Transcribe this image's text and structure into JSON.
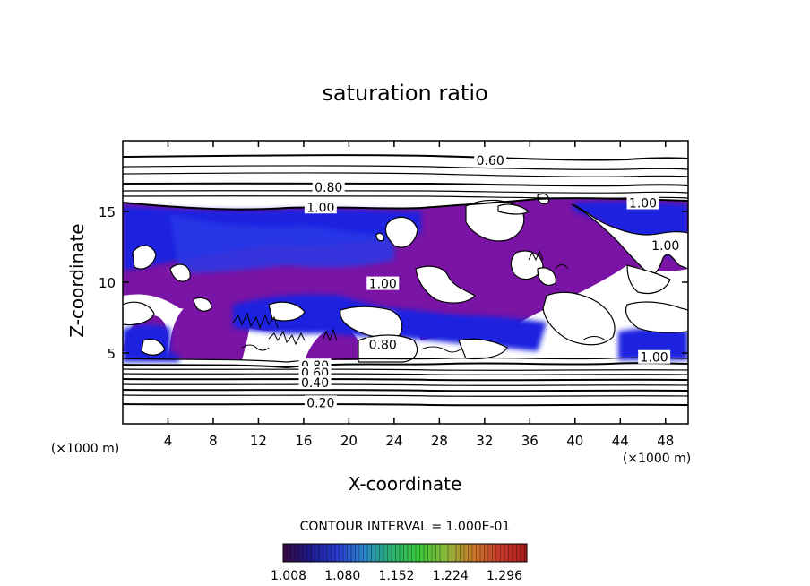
{
  "chart_data": {
    "type": "heatmap",
    "title": "saturation ratio",
    "xlabel": "X-coordinate",
    "ylabel": "Z-coordinate",
    "x_unit_label": "(×1000 m)",
    "x_unit_label_right": "(×1000 m)",
    "xlim": [
      0,
      50
    ],
    "ylim": [
      0,
      20
    ],
    "x_ticks": [
      4,
      8,
      12,
      16,
      20,
      24,
      28,
      32,
      36,
      40,
      44,
      48
    ],
    "y_ticks": [
      5,
      10,
      15
    ],
    "grid": false,
    "contour_interval_text": "CONTOUR INTERVAL = 1.000E-01",
    "contour_labels": [
      {
        "text": "0.60",
        "x": 32.5,
        "z": 18.6
      },
      {
        "text": "0.80",
        "x": 18.2,
        "z": 16.7
      },
      {
        "text": "1.00",
        "x": 17.5,
        "z": 15.3
      },
      {
        "text": "1.00",
        "x": 46.0,
        "z": 15.6
      },
      {
        "text": "1.00",
        "x": 48.0,
        "z": 12.6
      },
      {
        "text": "1.00",
        "x": 23.0,
        "z": 9.9
      },
      {
        "text": "0.80",
        "x": 23.0,
        "z": 5.6
      },
      {
        "text": "1.00",
        "x": 47.0,
        "z": 4.7
      },
      {
        "text": "0.80",
        "x": 17.0,
        "z": 4.1
      },
      {
        "text": "0.60",
        "x": 17.0,
        "z": 3.6
      },
      {
        "text": "0.40",
        "x": 17.0,
        "z": 2.9
      },
      {
        "text": "0.20",
        "x": 17.5,
        "z": 1.5
      }
    ],
    "colorbar": {
      "ticks": [
        "1.008",
        "1.080",
        "1.152",
        "1.224",
        "1.296"
      ],
      "colors": [
        "#3a0a42",
        "#1a1a8a",
        "#2a3acc",
        "#2a86c8",
        "#2ab070",
        "#3ac83a",
        "#8ab83a",
        "#c87a2a",
        "#c83a2a",
        "#a81a1a"
      ]
    },
    "fill_colors": {
      "purple": "#7a14a4",
      "blue": "#1a24e0",
      "deep_blue": "#1010b4"
    }
  }
}
